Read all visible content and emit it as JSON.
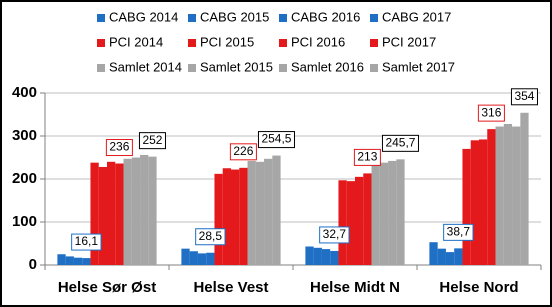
{
  "chart_data": {
    "type": "bar",
    "categories": [
      "Helse Sør Øst",
      "Helse Vest",
      "Helse Midt N",
      "Helse Nord"
    ],
    "series": [
      {
        "name": "CABG 2014",
        "color": "#1f6fc5",
        "values": [
          25,
          38,
          43,
          53
        ]
      },
      {
        "name": "CABG 2015",
        "color": "#1f6fc5",
        "values": [
          20,
          32,
          40,
          38
        ]
      },
      {
        "name": "CABG 2016",
        "color": "#1f6fc5",
        "values": [
          17,
          27,
          37,
          30
        ]
      },
      {
        "name": "CABG 2017",
        "color": "#1f6fc5",
        "values": [
          16.1,
          28.5,
          32.7,
          38.7
        ],
        "value_labels": [
          "16,1",
          "28,5",
          "32,7",
          "38,7"
        ]
      },
      {
        "name": "PCI 2014",
        "color": "#e3191b",
        "values": [
          238,
          212,
          197,
          270
        ]
      },
      {
        "name": "PCI 2015",
        "color": "#e3191b",
        "values": [
          228,
          225,
          195,
          290
        ]
      },
      {
        "name": "PCI 2016",
        "color": "#e3191b",
        "values": [
          240,
          222,
          205,
          292
        ]
      },
      {
        "name": "PCI 2017",
        "color": "#e3191b",
        "values": [
          236,
          226,
          213,
          316
        ]
      },
      {
        "name": "Samlet 2014",
        "color": "#a6a6a6",
        "values": [
          247,
          242,
          235,
          322
        ]
      },
      {
        "name": "Samlet 2015",
        "color": "#a6a6a6",
        "values": [
          250,
          240,
          238,
          328
        ]
      },
      {
        "name": "Samlet 2016",
        "color": "#a6a6a6",
        "values": [
          256,
          247,
          242,
          322
        ]
      },
      {
        "name": "Samlet 2017",
        "color": "#a6a6a6",
        "values": [
          252,
          254.5,
          245.7,
          354
        ],
        "value_labels": [
          "252",
          "254,5",
          "245,7",
          "354"
        ]
      }
    ],
    "ylim": [
      0,
      400
    ],
    "yticks": [
      0,
      100,
      200,
      300,
      400
    ],
    "grid": true,
    "legend": "top"
  }
}
